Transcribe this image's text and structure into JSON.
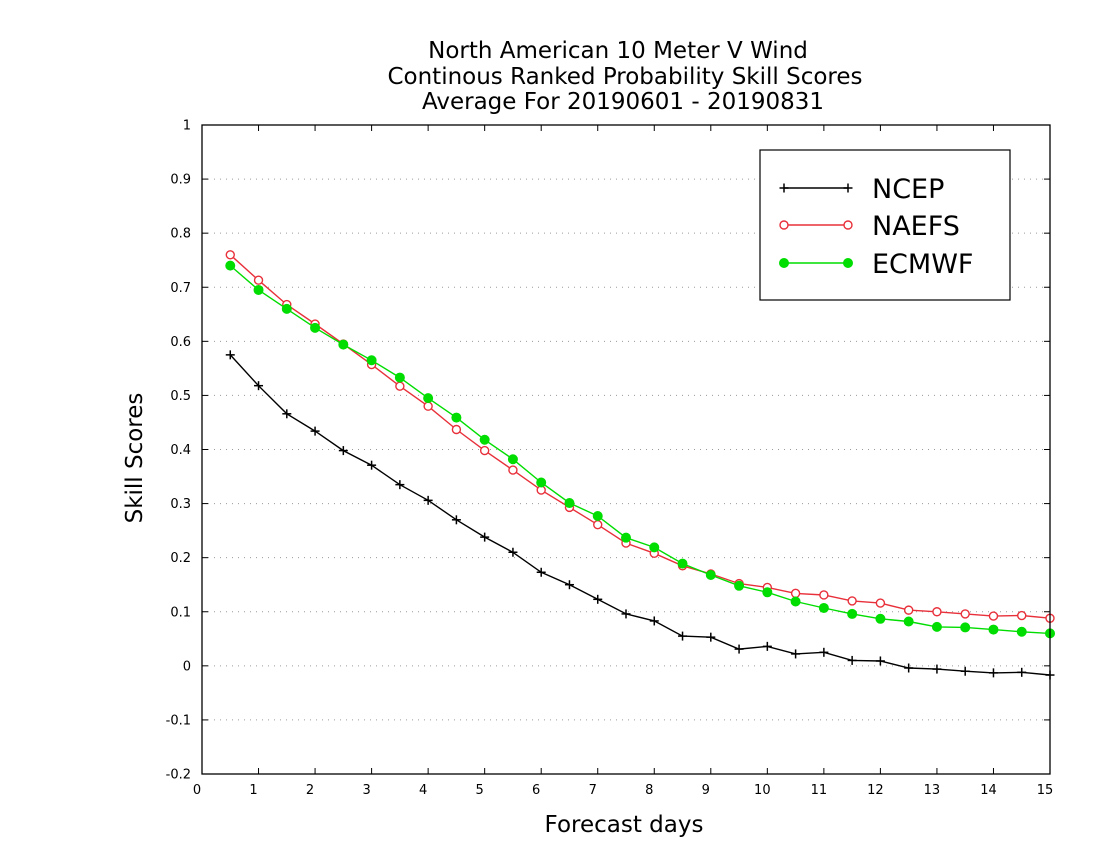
{
  "chart_data": {
    "type": "line",
    "title": [
      "North American 10 Meter V Wind",
      "Continous Ranked Probability Skill Scores",
      "Average For 20190601 - 20190831"
    ],
    "xlabel": "Forecast days",
    "ylabel": "Skill Scores",
    "xlim": [
      0,
      15
    ],
    "ylim": [
      -0.2,
      1
    ],
    "xticks": [
      0,
      1,
      2,
      3,
      4,
      5,
      6,
      7,
      8,
      9,
      10,
      11,
      12,
      13,
      14,
      15
    ],
    "yticks": [
      -0.2,
      -0.1,
      0,
      0.1,
      0.2,
      0.3,
      0.4,
      0.5,
      0.6,
      0.7,
      0.8,
      0.9,
      1
    ],
    "grid": "horizontal-dotted",
    "legend_position": "top-right",
    "x": [
      0.5,
      1,
      1.5,
      2,
      2.5,
      3,
      3.5,
      4,
      4.5,
      5,
      5.5,
      6,
      6.5,
      7,
      7.5,
      8,
      8.5,
      9,
      9.5,
      10,
      10.5,
      11,
      11.5,
      12,
      12.5,
      13,
      13.5,
      14,
      14.5,
      15
    ],
    "series": [
      {
        "name": "NCEP",
        "color": "#000000",
        "marker": "plus",
        "values": [
          0.575,
          0.518,
          0.466,
          0.434,
          0.398,
          0.371,
          0.335,
          0.306,
          0.27,
          0.238,
          0.21,
          0.173,
          0.15,
          0.123,
          0.096,
          0.083,
          0.055,
          0.053,
          0.031,
          0.036,
          0.022,
          0.025,
          0.01,
          0.009,
          -0.004,
          -0.006,
          -0.01,
          -0.013,
          -0.012,
          -0.017
        ]
      },
      {
        "name": "NAEFS",
        "color": "#e8303a",
        "marker": "open-circle",
        "values": [
          0.76,
          0.713,
          0.668,
          0.632,
          0.595,
          0.557,
          0.517,
          0.48,
          0.437,
          0.398,
          0.362,
          0.325,
          0.293,
          0.261,
          0.227,
          0.208,
          0.185,
          0.17,
          0.152,
          0.145,
          0.134,
          0.131,
          0.12,
          0.116,
          0.103,
          0.1,
          0.096,
          0.092,
          0.093,
          0.088
        ]
      },
      {
        "name": "ECMWF",
        "color": "#00dd00",
        "marker": "filled-circle",
        "values": [
          0.74,
          0.695,
          0.66,
          0.625,
          0.594,
          0.565,
          0.533,
          0.495,
          0.459,
          0.418,
          0.382,
          0.339,
          0.301,
          0.277,
          0.237,
          0.219,
          0.189,
          0.168,
          0.148,
          0.136,
          0.119,
          0.107,
          0.096,
          0.087,
          0.082,
          0.072,
          0.071,
          0.067,
          0.063,
          0.06
        ]
      }
    ]
  }
}
